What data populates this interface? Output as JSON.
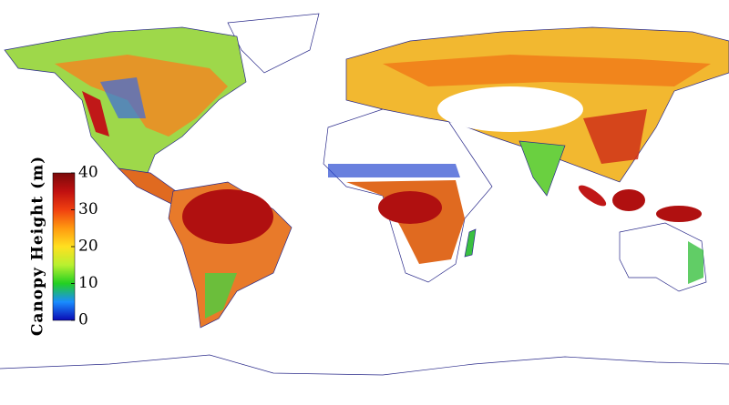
{
  "legend": {
    "title": "Canopy Height (m)",
    "range": [
      0,
      40
    ],
    "ticks": [
      0,
      10,
      20,
      30,
      40
    ],
    "colors": [
      "#0a0ab4",
      "#1a8cff",
      "#22d022",
      "#b8f030",
      "#ffe020",
      "#ff9a10",
      "#f04010",
      "#c01010",
      "#7a0a0a"
    ]
  }
}
